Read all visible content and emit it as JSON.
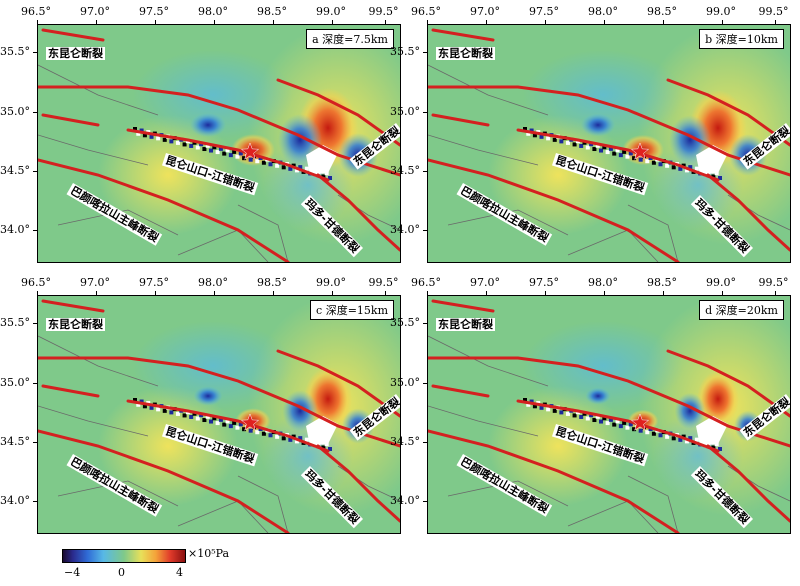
{
  "lon_labels": [
    "96.5°",
    "97.0°",
    "97.5°",
    "98.0°",
    "98.5°",
    "99.0°",
    "99.5°"
  ],
  "lat_labels": [
    "35.5°",
    "35.0°",
    "34.5°",
    "34.0°"
  ],
  "panels": [
    {
      "label": "a 深度=7.5km"
    },
    {
      "label": "b 深度=10km"
    },
    {
      "label": "c 深度=15km"
    },
    {
      "label": "d 深度=20km"
    }
  ],
  "faults": {
    "east_kunlun_w": "东昆仑断裂",
    "east_kunlun_e": "东昆仑断裂",
    "kunlun_pass_jiangcuo": "昆仑山口-江错断裂",
    "bayan_har": "巴颜喀拉山主峰断裂",
    "maduo_gande": "玛多-甘德断裂"
  },
  "colorbar": {
    "unit": "×10⁵Pa",
    "ticks": [
      "−4",
      "0",
      "4"
    ],
    "range": [
      -4,
      4
    ],
    "colors": [
      "#1a0a30",
      "#2a2a8c",
      "#2f6bd6",
      "#57b8e6",
      "#7fc98a",
      "#e8e05a",
      "#f4a33a",
      "#e03a2a",
      "#8a1010"
    ]
  },
  "epicenter_marker_color": "#e02020",
  "fault_color": "#d42020"
}
